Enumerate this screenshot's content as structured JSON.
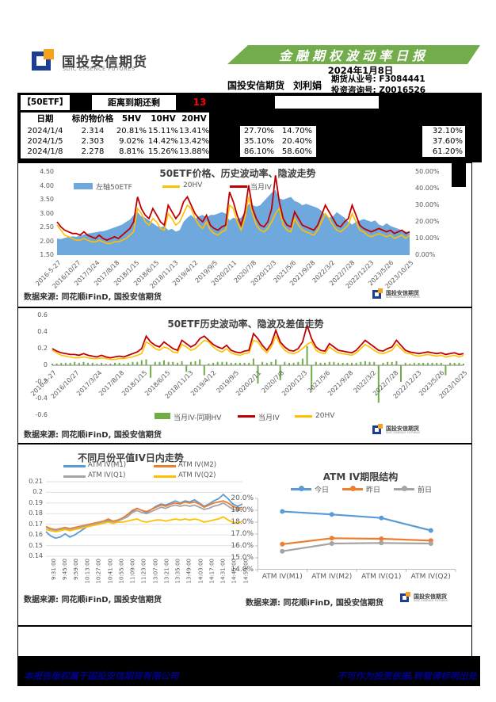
{
  "header": {
    "logo": {
      "brand_cn": "国投安信期货",
      "brand_en": "SDIC ESSENCE FUTURES"
    },
    "banner_title": "金融期权波动率日报",
    "report_date": "2024年1月8日",
    "company": "国投安信期货",
    "analyst": "刘利娟",
    "license1": "期货从业号: F3084441",
    "license2": "投资咨询号: Z0016526"
  },
  "info_band": {
    "underlying_label": "【50ETF】",
    "expiry_label": "距离到期还剩",
    "expiry_days": "13",
    "table": {
      "headers": [
        "日期",
        "标的物价格",
        "5HV",
        "10HV",
        "20HV"
      ],
      "rows": [
        [
          "2024/1/4",
          "2.314",
          "20.81%",
          "15.11%",
          "13.41%"
        ],
        [
          "2024/1/5",
          "2.303",
          "9.02%",
          "14.42%",
          "13.42%"
        ],
        [
          "2024/1/8",
          "2.278",
          "8.81%",
          "15.26%",
          "13.88%"
        ]
      ]
    },
    "mid_values": [
      [
        "27.70%",
        "14.70%"
      ],
      [
        "35.10%",
        "20.40%"
      ],
      [
        "86.10%",
        "58.60%"
      ]
    ],
    "right_values": [
      "32.10%",
      "37.60%",
      "61.20%"
    ]
  },
  "sources": {
    "text": "数据来源: 同花顺iFinD, 国投安信期货"
  },
  "footer": {
    "left": "本报告版权属于国投安信期货有限公司",
    "right": "不可作为投资依据,转载请标明出处"
  },
  "chart_data": [
    {
      "type": "area",
      "title": "50ETF价格、历史波动率、隐波走势",
      "legend": [
        {
          "label": "左轴50ETF",
          "color": "#6FA8DC",
          "kind": "area"
        },
        {
          "label": "20HV",
          "color": "#FFC000",
          "kind": "line"
        },
        {
          "label": "当月IV",
          "color": "#C00000",
          "kind": "line"
        }
      ],
      "y_left": {
        "ticks": [
          "4.50",
          "4.00",
          "3.50",
          "3.00",
          "2.50",
          "2.00",
          "1.50"
        ],
        "min": 1.5,
        "max": 4.5
      },
      "y_right": {
        "ticks": [
          "50.00%",
          "40.00%",
          "30.00%",
          "20.00%",
          "10.00%",
          "0.00%"
        ],
        "min": 0,
        "max": 50
      },
      "x_ticks": [
        "2016-5-27",
        "2016/10/27",
        "2017/3/24",
        "2017/8/18",
        "2018/1/15",
        "2018/6/15",
        "2018/11/13",
        "2019/4/12",
        "2019/9/5",
        "2020/2/11",
        "2020/7/8",
        "2020/12/3",
        "2021/5/6",
        "2021/9/28",
        "2022/3/2",
        "2022/7/28",
        "2022/12/23",
        "2023/5/26",
        "2023/10/25"
      ],
      "series": [
        {
          "name": "左轴50ETF",
          "axis": "left",
          "color": "#6FA8DC",
          "values": [
            2.1,
            2.08,
            2.12,
            2.15,
            2.18,
            2.16,
            2.2,
            2.24,
            2.28,
            2.3,
            2.32,
            2.35,
            2.36,
            2.4,
            2.45,
            2.5,
            2.55,
            2.6,
            2.7,
            2.78,
            2.95,
            3.05,
            2.9,
            2.85,
            2.75,
            2.65,
            2.55,
            2.5,
            2.55,
            2.4,
            2.45,
            2.35,
            2.4,
            2.7,
            2.85,
            2.95,
            2.8,
            2.9,
            2.95,
            2.85,
            2.95,
            2.95,
            3.0,
            3.05,
            3.0,
            2.75,
            2.85,
            2.8,
            2.85,
            3.05,
            3.35,
            3.3,
            3.25,
            3.3,
            3.45,
            3.6,
            3.75,
            3.85,
            3.55,
            3.5,
            3.55,
            3.6,
            3.45,
            3.4,
            3.3,
            3.35,
            3.3,
            3.25,
            3.2,
            3.1,
            2.95,
            2.85,
            2.9,
            3.05,
            2.95,
            2.85,
            2.7,
            2.6,
            2.7,
            2.75,
            2.8,
            2.75,
            2.7,
            2.75,
            2.6,
            2.55,
            2.65,
            2.55,
            2.5,
            2.45,
            2.4,
            2.35,
            2.31
          ]
        },
        {
          "name": "20HV",
          "axis": "right",
          "color": "#FFC000",
          "values": [
            18,
            15,
            12,
            11,
            10,
            9,
            9,
            10,
            9,
            8,
            8,
            9,
            8,
            7,
            7,
            8,
            8,
            9,
            10,
            12,
            14,
            28,
            25,
            20,
            18,
            22,
            20,
            16,
            15,
            25,
            22,
            18,
            20,
            25,
            30,
            28,
            22,
            18,
            16,
            20,
            15,
            13,
            12,
            14,
            15,
            30,
            28,
            20,
            15,
            22,
            35,
            25,
            18,
            15,
            14,
            16,
            20,
            25,
            28,
            18,
            15,
            14,
            22,
            18,
            15,
            14,
            13,
            12,
            15,
            20,
            25,
            22,
            18,
            15,
            14,
            16,
            18,
            25,
            20,
            15,
            14,
            12,
            11,
            12,
            13,
            12,
            11,
            12,
            10,
            11,
            12,
            10,
            12
          ]
        },
        {
          "name": "当月IV",
          "axis": "right",
          "color": "#C00000",
          "values": [
            20,
            17,
            15,
            14,
            13,
            13,
            12,
            14,
            12,
            11,
            10,
            12,
            10,
            9,
            10,
            11,
            10,
            12,
            14,
            16,
            20,
            35,
            28,
            24,
            22,
            28,
            24,
            20,
            18,
            30,
            26,
            22,
            25,
            32,
            35,
            30,
            25,
            22,
            20,
            24,
            18,
            16,
            15,
            17,
            18,
            38,
            32,
            24,
            18,
            26,
            42,
            28,
            22,
            18,
            17,
            20,
            28,
            48,
            32,
            22,
            18,
            17,
            26,
            22,
            18,
            17,
            16,
            15,
            18,
            24,
            30,
            26,
            22,
            18,
            17,
            20,
            22,
            30,
            24,
            18,
            16,
            15,
            14,
            15,
            16,
            15,
            14,
            15,
            13,
            14,
            15,
            13,
            14
          ]
        }
      ]
    },
    {
      "type": "bar",
      "title": "50ETF历史波动率、隐波及差值走势",
      "legend": [
        {
          "label": "当月IV-同期HV",
          "color": "#70AD47",
          "kind": "bar"
        },
        {
          "label": "当月IV",
          "color": "#C00000",
          "kind": "line"
        },
        {
          "label": "20HV",
          "color": "#FFC000",
          "kind": "line"
        }
      ],
      "y": {
        "ticks": [
          "0.6",
          "0.4",
          "0.2",
          "0",
          "-0.2",
          "-0.4",
          "-0.6"
        ],
        "min": -0.6,
        "max": 0.6
      },
      "x_ticks": [
        "2016-5-27",
        "2016/10/27",
        "2017/3/24",
        "2017/8/18",
        "2018/1/15",
        "2018/6/15",
        "2018/11/13",
        "2019/4/12",
        "2019/9/5",
        "2020/2/11",
        "2020/7/8",
        "2020/12/3",
        "2021/5/6",
        "2021/9/28",
        "2022/3/2",
        "2022/7/28",
        "2022/12/23",
        "2023/5/26",
        "2023/10/25"
      ],
      "bars": {
        "name": "当月IV-同期HV",
        "color": "#70AD47",
        "values": [
          0.02,
          0.02,
          0.03,
          0.03,
          0.03,
          0.04,
          0.03,
          0.04,
          0.03,
          0.03,
          0.02,
          0.03,
          0.02,
          0.02,
          0.03,
          0.03,
          0.02,
          0.03,
          0.04,
          0.04,
          0.06,
          0.07,
          -0.15,
          0.04,
          0.04,
          0.06,
          0.04,
          0.04,
          0.03,
          0.05,
          -0.08,
          0.04,
          0.05,
          0.07,
          -0.12,
          0.02,
          0.03,
          0.04,
          0.04,
          0.04,
          0.03,
          0.03,
          0.03,
          0.03,
          0.03,
          0.08,
          -0.22,
          0.04,
          0.03,
          0.04,
          0.07,
          -0.18,
          0.04,
          0.03,
          0.03,
          0.04,
          0.08,
          0.23,
          -0.3,
          0.04,
          0.03,
          0.03,
          0.04,
          0.04,
          0.03,
          0.03,
          0.03,
          0.03,
          0.03,
          0.04,
          0.05,
          0.04,
          0.04,
          -0.45,
          0.03,
          0.04,
          0.04,
          0.05,
          -0.2,
          0.03,
          0.02,
          0.03,
          0.03,
          0.03,
          0.03,
          0.03,
          0.03,
          0.03,
          -0.12,
          0.03,
          0.03,
          0.03,
          0.02
        ]
      },
      "lines": [
        {
          "name": "当月IV",
          "color": "#C00000",
          "source": "chart1 当月IV",
          "scale": 0.01
        },
        {
          "name": "20HV",
          "color": "#FFC000",
          "source": "chart1 20HV",
          "scale": 0.01
        }
      ]
    },
    {
      "type": "line",
      "title": "不同月份平值IV日内走势",
      "y": {
        "ticks": [
          "0.21",
          "0.2",
          "0.19",
          "0.18",
          "0.17",
          "0.16",
          "0.15",
          "0.14"
        ],
        "min": 0.14,
        "max": 0.21
      },
      "x_ticks": [
        "9:31:00",
        "9:45:00",
        "9:59:00",
        "10:13:00",
        "10:27:00",
        "10:41:00",
        "10:55:00",
        "11:09:00",
        "11:23:00",
        "13:07:00",
        "13:21:00",
        "13:35:00",
        "13:49:00",
        "14:03:00",
        "14:17:00",
        "14:31:00",
        "14:45:00",
        "14:59:00"
      ],
      "series": [
        {
          "name": "ATM IV(M1)",
          "color": "#5B9BD5",
          "values": [
            0.163,
            0.159,
            0.157,
            0.158,
            0.161,
            0.158,
            0.16,
            0.163,
            0.166,
            0.169,
            0.171,
            0.17,
            0.172,
            0.174,
            0.171,
            0.173,
            0.176,
            0.179,
            0.182,
            0.185,
            0.183,
            0.181,
            0.184,
            0.187,
            0.189,
            0.188,
            0.19,
            0.192,
            0.19,
            0.192,
            0.191,
            0.193,
            0.19,
            0.187,
            0.189,
            0.192,
            0.194,
            0.198,
            0.194,
            0.189,
            0.187,
            0.189
          ]
        },
        {
          "name": "ATM IV(M2)",
          "color": "#ED7D31",
          "values": [
            0.168,
            0.166,
            0.165,
            0.166,
            0.167,
            0.166,
            0.167,
            0.168,
            0.169,
            0.17,
            0.171,
            0.172,
            0.173,
            0.175,
            0.173,
            0.174,
            0.176,
            0.179,
            0.183,
            0.185,
            0.183,
            0.182,
            0.184,
            0.186,
            0.188,
            0.187,
            0.189,
            0.19,
            0.189,
            0.191,
            0.19,
            0.191,
            0.189,
            0.186,
            0.188,
            0.19,
            0.191,
            0.192,
            0.19,
            0.187,
            0.185,
            0.186
          ]
        },
        {
          "name": "ATM IV(Q1)",
          "color": "#A5A5A5",
          "values": [
            0.167,
            0.165,
            0.164,
            0.165,
            0.166,
            0.165,
            0.166,
            0.167,
            0.168,
            0.169,
            0.17,
            0.171,
            0.172,
            0.173,
            0.172,
            0.173,
            0.175,
            0.177,
            0.181,
            0.183,
            0.181,
            0.18,
            0.182,
            0.184,
            0.186,
            0.185,
            0.187,
            0.188,
            0.187,
            0.188,
            0.187,
            0.188,
            0.186,
            0.184,
            0.185,
            0.187,
            0.188,
            0.19,
            0.187,
            0.184,
            0.183,
            0.184
          ]
        },
        {
          "name": "ATM IV(Q2)",
          "color": "#FFC000",
          "values": [
            0.165,
            0.164,
            0.163,
            0.164,
            0.165,
            0.164,
            0.165,
            0.166,
            0.167,
            0.168,
            0.169,
            0.17,
            0.171,
            0.172,
            0.171,
            0.172,
            0.172,
            0.173,
            0.174,
            0.175,
            0.173,
            0.172,
            0.173,
            0.174,
            0.174,
            0.173,
            0.174,
            0.175,
            0.174,
            0.175,
            0.174,
            0.175,
            0.174,
            0.172,
            0.173,
            0.174,
            0.175,
            0.177,
            0.174,
            0.172,
            0.171,
            0.173
          ]
        }
      ]
    },
    {
      "type": "line",
      "title": "ATM IV期限结构",
      "categories": [
        "ATM IV(M1)",
        "ATM IV(M2)",
        "ATM IV(Q1)",
        "ATM IV(Q2)"
      ],
      "y": {
        "ticks": [
          "20.0%",
          "19.0%",
          "18.0%",
          "17.0%",
          "16.0%",
          "15.0%",
          "14.0%"
        ],
        "min": 14,
        "max": 20
      },
      "series": [
        {
          "name": "今日",
          "color": "#5B9BD5",
          "values": [
            18.9,
            18.65,
            18.35,
            17.3
          ]
        },
        {
          "name": "昨日",
          "color": "#ED7D31",
          "values": [
            16.15,
            16.65,
            16.6,
            16.45
          ]
        },
        {
          "name": "前日",
          "color": "#A5A5A5",
          "values": [
            15.55,
            16.2,
            16.25,
            16.2
          ]
        }
      ]
    }
  ]
}
